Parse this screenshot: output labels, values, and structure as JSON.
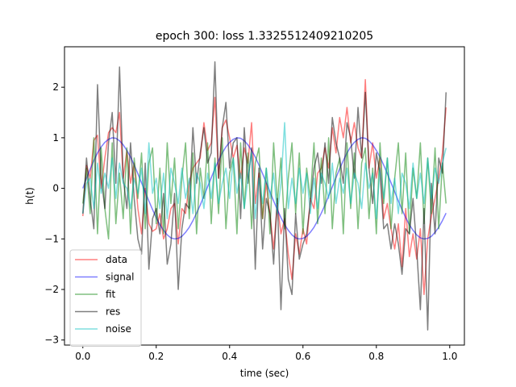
{
  "chart_data": {
    "type": "line",
    "title": "epoch 300: loss 1.3325512409210205",
    "xlabel": "time (sec)",
    "ylabel": "h(t)",
    "xlim": [
      -0.05,
      1.04
    ],
    "ylim": [
      -3.1,
      2.8
    ],
    "xticks": [
      0.0,
      0.2,
      0.4,
      0.6,
      0.8,
      1.0
    ],
    "xtick_labels": [
      "0.0",
      "0.2",
      "0.4",
      "0.6",
      "0.8",
      "1.0"
    ],
    "yticks": [
      -3,
      -2,
      -1,
      0,
      1,
      2
    ],
    "ytick_labels": [
      "−3",
      "−2",
      "−1",
      "0",
      "1",
      "2"
    ],
    "grid": false,
    "legend_position": "lower-left",
    "sampling": {
      "count": 100,
      "x_start": 0.0,
      "x_step": 0.01
    },
    "series": [
      {
        "name": "data",
        "color": "#ff0000",
        "opacity": 0.5,
        "values": [
          -0.55,
          0.45,
          0.2,
          0.95,
          1.05,
          0.0,
          0.6,
          1.1,
          1.2,
          1.1,
          1.5,
          0.2,
          0.75,
          0.1,
          0.5,
          -0.4,
          -0.9,
          0.0,
          -0.7,
          -0.85,
          -0.8,
          -0.5,
          -1.0,
          -0.8,
          -0.4,
          -0.3,
          -1.1,
          -0.4,
          -0.5,
          0.1,
          0.4,
          0.5,
          0.6,
          1.3,
          0.75,
          0.9,
          1.8,
          0.2,
          1.2,
          1.35,
          1.0,
          0.6,
          0.85,
          0.2,
          0.8,
          0.5,
          1.3,
          -0.3,
          0.3,
          -0.6,
          0.1,
          -0.5,
          -1.2,
          -0.3,
          -0.9,
          -0.6,
          -1.3,
          -1.8,
          -0.9,
          -1.3,
          -0.8,
          -1.1,
          -0.2,
          -0.4,
          0.3,
          0.4,
          0.8,
          0.4,
          1.2,
          0.7,
          1.4,
          1.0,
          1.6,
          0.9,
          1.3,
          0.8,
          0.6,
          2.15,
          0.4,
          0.9,
          0.2,
          0.6,
          -0.6,
          -0.3,
          -0.8,
          -1.2,
          -0.7,
          -1.55,
          -0.4,
          -1.35,
          -0.9,
          -1.4,
          -0.8,
          -2.1,
          -1.0,
          -0.55,
          -0.2,
          0.2,
          0.7,
          1.6
        ]
      },
      {
        "name": "signal",
        "color": "#0000ff",
        "opacity": 0.5,
        "values": [
          0.0,
          0.2,
          0.38,
          0.55,
          0.7,
          0.82,
          0.91,
          0.97,
          1.0,
          0.99,
          0.94,
          0.86,
          0.75,
          0.62,
          0.46,
          0.29,
          0.11,
          -0.07,
          -0.25,
          -0.42,
          -0.58,
          -0.72,
          -0.83,
          -0.92,
          -0.98,
          -1.0,
          -0.99,
          -0.95,
          -0.87,
          -0.77,
          -0.64,
          -0.49,
          -0.33,
          -0.15,
          0.03,
          0.21,
          0.39,
          0.55,
          0.7,
          0.82,
          0.91,
          0.97,
          1.0,
          0.99,
          0.94,
          0.86,
          0.75,
          0.62,
          0.46,
          0.29,
          0.11,
          -0.07,
          -0.25,
          -0.42,
          -0.58,
          -0.72,
          -0.83,
          -0.92,
          -0.98,
          -1.0,
          -0.99,
          -0.95,
          -0.87,
          -0.77,
          -0.64,
          -0.49,
          -0.33,
          -0.15,
          0.03,
          0.21,
          0.39,
          0.55,
          0.7,
          0.82,
          0.91,
          0.97,
          1.0,
          0.99,
          0.94,
          0.86,
          0.75,
          0.62,
          0.46,
          0.29,
          0.11,
          -0.07,
          -0.25,
          -0.42,
          -0.58,
          -0.72,
          -0.83,
          -0.92,
          -0.98,
          -1.0,
          -0.99,
          -0.95,
          -0.87,
          -0.77,
          -0.64,
          -0.49
        ]
      },
      {
        "name": "fit",
        "color": "#008000",
        "opacity": 0.5,
        "values": [
          -0.3,
          0.4,
          -0.5,
          1.0,
          -0.9,
          0.8,
          -0.4,
          -1.0,
          0.9,
          -0.7,
          0.3,
          -0.6,
          0.8,
          -0.9,
          0.6,
          -0.2,
          0.7,
          -0.8,
          0.5,
          0.8,
          -0.7,
          0.4,
          -0.9,
          0.9,
          -0.3,
          0.6,
          -0.8,
          0.2,
          0.9,
          -0.6,
          0.7,
          -0.9,
          0.4,
          -0.2,
          0.9,
          -0.7,
          0.6,
          -0.5,
          1.0,
          -0.8,
          0.3,
          0.6,
          -0.9,
          0.9,
          -0.4,
          0.7,
          -0.8,
          0.5,
          0.8,
          -0.6,
          0.4,
          -0.9,
          0.9,
          -0.3,
          0.6,
          -0.8,
          0.2,
          0.9,
          -0.5,
          0.7,
          -0.9,
          0.4,
          -0.2,
          0.9,
          -0.7,
          0.6,
          -0.5,
          1.0,
          -0.8,
          0.3,
          0.6,
          -0.9,
          0.9,
          -0.4,
          0.7,
          -0.8,
          0.5,
          0.8,
          -0.6,
          0.4,
          -0.9,
          0.9,
          -0.3,
          0.6,
          -0.8,
          0.2,
          0.9,
          -0.5,
          0.7,
          -0.9,
          0.4,
          -0.2,
          0.9,
          -0.7,
          0.6,
          -0.5,
          0.8,
          -0.8,
          0.5,
          -0.3
        ]
      },
      {
        "name": "res",
        "color": "#000000",
        "opacity": 0.5,
        "values": [
          -0.5,
          0.6,
          -0.2,
          -0.8,
          2.05,
          0.2,
          -0.4,
          0.9,
          1.5,
          0.1,
          2.4,
          0.2,
          -0.4,
          0.9,
          -0.2,
          -1.0,
          -1.3,
          0.5,
          -1.6,
          -0.6,
          -0.4,
          -0.9,
          -0.1,
          -1.5,
          -1.1,
          -0.1,
          -2.0,
          -0.8,
          -0.3,
          -0.4,
          1.2,
          0.1,
          0.7,
          1.2,
          0.5,
          0.7,
          2.5,
          0.2,
          1.2,
          1.7,
          0.4,
          0.9,
          1.0,
          -0.6,
          1.2,
          0.1,
          0.8,
          -1.6,
          0.4,
          -1.2,
          -0.2,
          -0.5,
          -1.5,
          -0.2,
          -2.4,
          -0.4,
          -1.8,
          -2.1,
          -0.5,
          -1.4,
          -1.1,
          -0.9,
          -0.3,
          0.4,
          0.7,
          0.1,
          0.9,
          0.1,
          1.4,
          0.9,
          0.6,
          0.1,
          1.3,
          1.0,
          0.2,
          1.6,
          0.6,
          1.9,
          0.4,
          -0.3,
          0.7,
          0.3,
          -0.8,
          -0.7,
          -1.2,
          -0.7,
          -1.1,
          -1.7,
          -0.8,
          -0.9,
          -0.2,
          -1.2,
          -2.4,
          -0.4,
          -2.8,
          0.1,
          -0.9,
          0.6,
          0.3,
          1.9
        ]
      },
      {
        "name": "noise",
        "color": "#00bfbf",
        "opacity": 0.5,
        "values": [
          -0.5,
          0.1,
          0.2,
          -0.4,
          0.5,
          -0.1,
          0.3,
          0.0,
          0.6,
          -0.2,
          0.5,
          0.1,
          0.0,
          -0.4,
          0.2,
          -0.1,
          0.4,
          -0.5,
          0.9,
          -0.1,
          0.2,
          -0.4,
          0.3,
          -0.6,
          0.4,
          0.1,
          -0.3,
          0.4,
          -0.2,
          0.2,
          -0.5,
          0.3,
          0.1,
          -0.4,
          0.3,
          -0.2,
          0.5,
          -0.3,
          0.1,
          0.4,
          -0.2,
          0.6,
          -0.1,
          0.3,
          -0.4,
          0.2,
          0.7,
          -0.6,
          0.2,
          -0.3,
          0.4,
          -0.2,
          0.3,
          -0.5,
          0.1,
          1.3,
          -0.4,
          0.2,
          -0.3,
          0.4,
          -0.1,
          0.3,
          -0.5,
          0.2,
          -0.4,
          0.3,
          0.1,
          -0.2,
          0.5,
          -0.3,
          0.2,
          -0.1,
          0.4,
          -0.3,
          0.3,
          0.1,
          -0.4,
          0.5,
          0.0,
          0.3,
          -0.6,
          0.4,
          -0.2,
          0.6,
          -0.3,
          0.2,
          -0.5,
          0.3,
          0.1,
          -0.4,
          0.5,
          -0.2,
          0.3,
          -0.3,
          0.6,
          -0.2,
          0.4,
          0.1,
          0.5,
          0.8
        ]
      }
    ]
  }
}
